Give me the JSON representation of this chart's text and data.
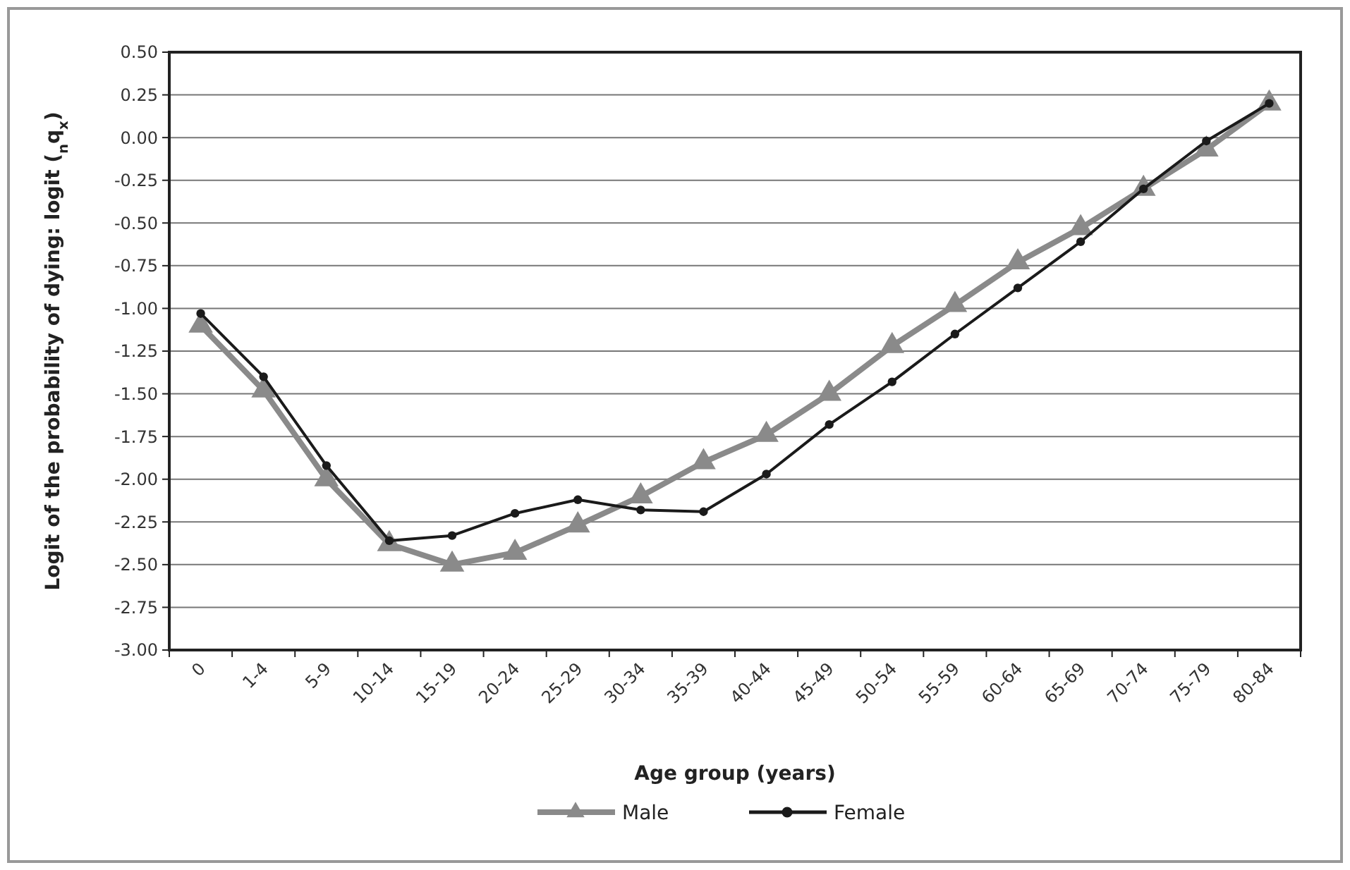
{
  "chart_data": {
    "type": "line",
    "xlabel": "Age group (years)",
    "ylabel": "Logit of the probability of dying: logit ($_{n}$q$_{x}$)",
    "categories": [
      "0",
      "1-4",
      "5-9",
      "10-14",
      "15-19",
      "20-24",
      "25-29",
      "30-34",
      "35-39",
      "40-44",
      "45-49",
      "50-54",
      "55-59",
      "60-64",
      "65-69",
      "70-74",
      "75-79",
      "80-84"
    ],
    "ylim": [
      -3,
      0.5
    ],
    "yticks": [
      {
        "value": -3,
        "label": "-3.00"
      },
      {
        "value": -2.75,
        "label": "-2.75"
      },
      {
        "value": -2.5,
        "label": "-2.50"
      },
      {
        "value": -2.25,
        "label": "-2.25"
      },
      {
        "value": -2,
        "label": "-2.00"
      },
      {
        "value": -1.75,
        "label": "-1.75"
      },
      {
        "value": -1.5,
        "label": "-1.50"
      },
      {
        "value": -1.25,
        "label": "-1.25"
      },
      {
        "value": -1,
        "label": "-1.00"
      },
      {
        "value": -0.75,
        "label": "-0.75"
      },
      {
        "value": -0.5,
        "label": "-0.50"
      },
      {
        "value": -0.25,
        "label": "-0.25"
      },
      {
        "value": 0,
        "label": "0.00"
      },
      {
        "value": 0.25,
        "label": "0.25"
      },
      {
        "value": 0.5,
        "label": "0.50"
      }
    ],
    "grid": "y",
    "legend": "bottom",
    "series": [
      {
        "name": "Male",
        "color": "#8a8a8a",
        "marker": "triangle",
        "values": [
          -1.1,
          -1.48,
          -2.0,
          -2.38,
          -2.5,
          -2.43,
          -2.27,
          -2.1,
          -1.9,
          -1.74,
          -1.5,
          -1.22,
          -0.98,
          -0.73,
          -0.53,
          -0.3,
          -0.07,
          0.2
        ]
      },
      {
        "name": "Female",
        "color": "#1a1a1a",
        "marker": "circle",
        "values": [
          -1.03,
          -1.4,
          -1.92,
          -2.36,
          -2.33,
          -2.2,
          -2.12,
          -2.18,
          -2.19,
          -1.97,
          -1.68,
          -1.43,
          -1.15,
          -0.88,
          -0.61,
          -0.3,
          -0.02,
          0.2
        ]
      }
    ]
  }
}
